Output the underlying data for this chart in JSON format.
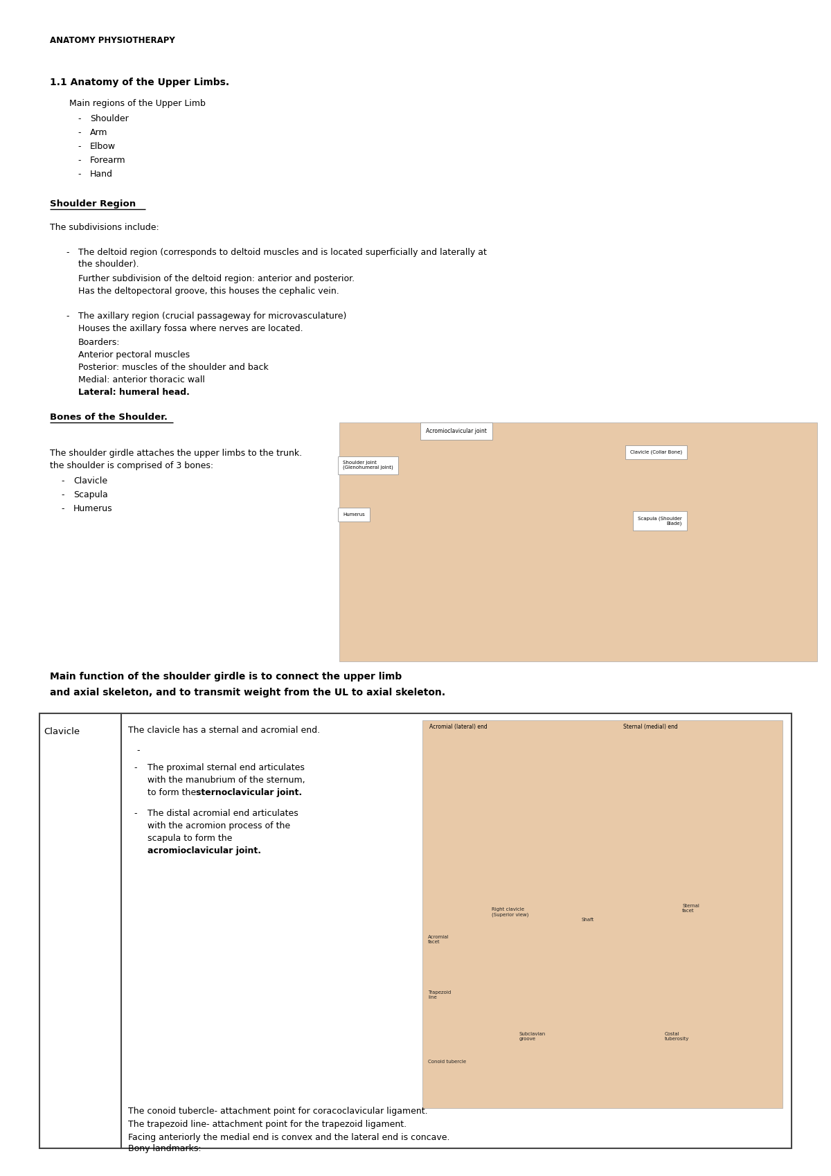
{
  "bg_color": "#ffffff",
  "title": "ANATOMY PHYSIOTHERAPY",
  "section1_title": "1.1 Anatomy of the Upper Limbs.",
  "section1_sub": "Main regions of the Upper Limb",
  "section1_items": [
    "Shoulder",
    "Arm",
    "Elbow",
    "Forearm",
    "Hand"
  ],
  "shoulder_region_title": "Shoulder Region",
  "shoulder_intro": "The subdivisions include:",
  "deltoid_line1": "The deltoid region (corresponds to deltoid muscles and is located superficially and laterally at",
  "deltoid_line2": "the shoulder).",
  "deltoid_sub1": "Further subdivision of the deltoid region: anterior and posterior.",
  "deltoid_sub2": "Has the deltopectoral groove, this houses the cephalic vein.",
  "axillary_bullet": "The axillary region (crucial passageway for microvasculature)",
  "axillary_sub1": "Houses the axillary fossa where nerves are located.",
  "axillary_sub2": "Boarders:",
  "axillary_sub3": "Anterior pectoral muscles",
  "axillary_sub4": "Posterior: muscles of the shoulder and back",
  "axillary_sub5": "Medial: anterior thoracic wall",
  "axillary_sub6": "Lateral: humeral head.",
  "bones_title": "Bones of the Shoulder.",
  "bones_intro1": "The shoulder girdle attaches the upper limbs to the trunk.",
  "bones_intro2": "the shoulder is comprised of 3 bones:",
  "bones_items": [
    "Clavicle",
    "Scapula",
    "Humerus"
  ],
  "main_func_line1": "Main function of the shoulder girdle is to connect the upper limb",
  "main_func_line2": "and axial skeleton, and to transmit weight from the UL to axial skeleton.",
  "table_col1_title": "Clavicle",
  "table_line1": "The clavicle has a sternal and acromial end.",
  "b1_line1": "The proximal sternal end articulates",
  "b1_line2": "with the manubrium of the sternum,",
  "b1_line3a": "to form the ",
  "b1_line3b": "sternoclavicular joint.",
  "b2_line1": "The distal acromial end articulates",
  "b2_line2": "with the acromion process of the",
  "b2_line3": "scapula to form the",
  "b2_line4": "acromioclavicular joint.",
  "t_line2": "The conoid tubercle- attachment point for coracoclavicular ligament.",
  "t_line3": "The trapezoid line- attachment point for the trapezoid ligament.",
  "t_line4": "Facing anteriorly the medial end is convex and the lateral end is concave.",
  "t_line5": "Bony landmarks:",
  "img_label1": "Acromioclavicular joint",
  "img_label2": "Shoulder joint\n(Glenohumeral joint)",
  "img_label3": "Clavicle (Collar Bone)",
  "img_label4": "Humerus",
  "img_label5": "Scapula (Shoulder\nBlade)",
  "clav_label1": "Acromial (lateral) end",
  "clav_label2": "Sternal (medial) end",
  "clav_label3": "Acromial\nfacet",
  "clav_label4": "Right clavicle\n(Superior view)",
  "clav_label5": "Shaft",
  "clav_label6": "Sternal\nfacet",
  "clav_label7": "Trapezoid\nline",
  "clav_label8": "Subclavian\ngroove",
  "clav_label9": "Costal\ntuberosity",
  "clav_label10": "Conoid tubercle"
}
